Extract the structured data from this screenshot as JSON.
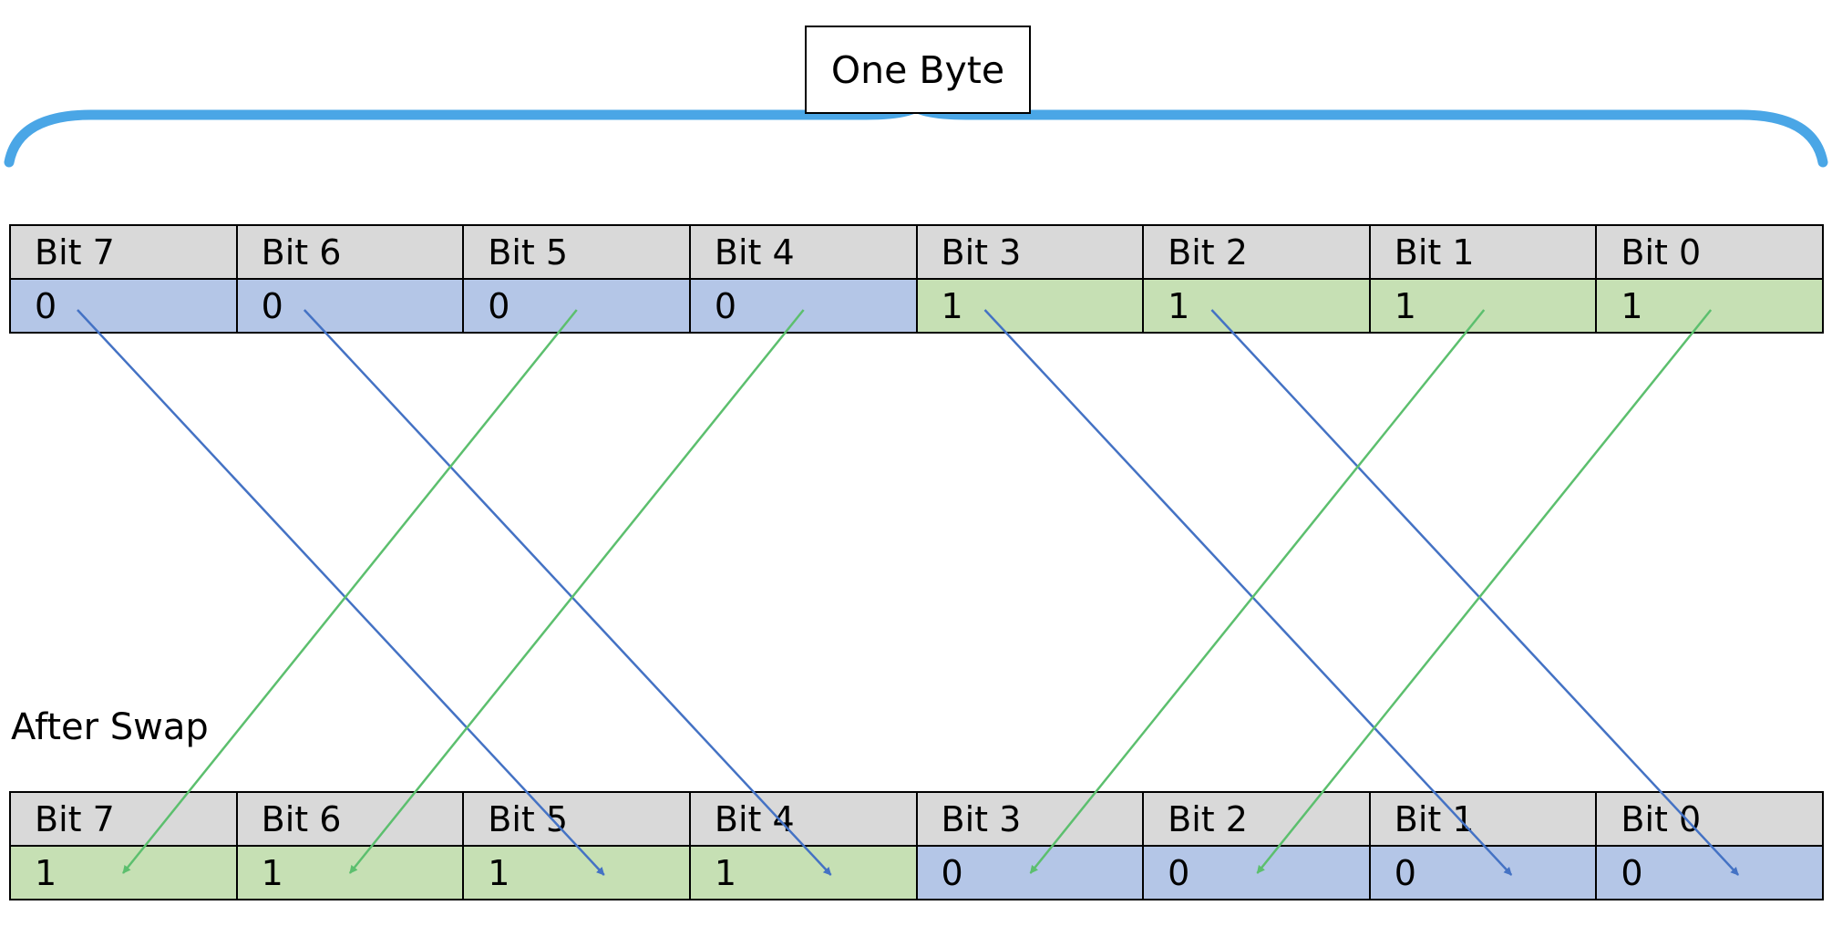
{
  "title_box": "One Byte",
  "after_caption": "After Swap",
  "colors": {
    "brace": "#4aa6e6",
    "blue_cell": "#b4c6e7",
    "green_cell": "#c6e0b4",
    "header_cell": "#d9d9d9",
    "blue_arrow": "#4472c4",
    "green_arrow": "#5cbf6e"
  },
  "before": {
    "headers": [
      "Bit 7",
      "Bit 6",
      "Bit 5",
      "Bit 4",
      "Bit 3",
      "Bit 2",
      "Bit 1",
      "Bit 0"
    ],
    "values": [
      "0",
      "0",
      "0",
      "0",
      "1",
      "1",
      "1",
      "1"
    ],
    "value_colors": [
      "blue",
      "blue",
      "blue",
      "blue",
      "green",
      "green",
      "green",
      "green"
    ]
  },
  "after": {
    "headers": [
      "Bit 7",
      "Bit 6",
      "Bit 5",
      "Bit 4",
      "Bit 3",
      "Bit 2",
      "Bit 1",
      "Bit 0"
    ],
    "values": [
      "1",
      "1",
      "1",
      "1",
      "0",
      "0",
      "0",
      "0"
    ],
    "value_colors": [
      "green",
      "green",
      "green",
      "green",
      "blue",
      "blue",
      "blue",
      "blue"
    ]
  },
  "arrows": [
    {
      "from": 0,
      "to": 2,
      "color": "blue"
    },
    {
      "from": 1,
      "to": 3,
      "color": "blue"
    },
    {
      "from": 2,
      "to": 0,
      "color": "green"
    },
    {
      "from": 3,
      "to": 1,
      "color": "green"
    },
    {
      "from": 4,
      "to": 6,
      "color": "blue"
    },
    {
      "from": 5,
      "to": 7,
      "color": "blue"
    },
    {
      "from": 6,
      "to": 4,
      "color": "green"
    },
    {
      "from": 7,
      "to": 5,
      "color": "green"
    }
  ]
}
